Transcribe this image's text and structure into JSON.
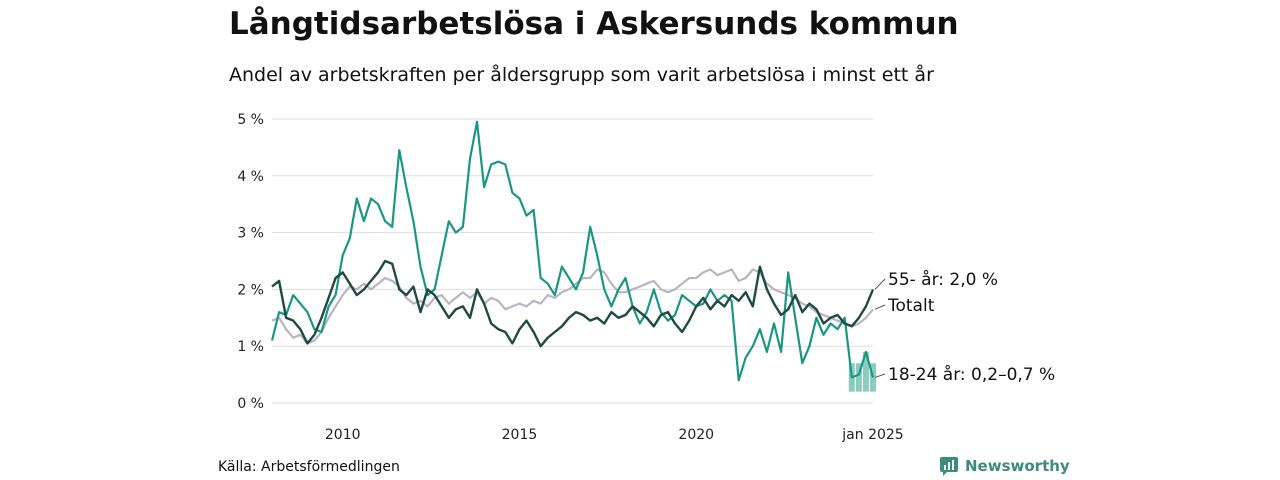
{
  "header": {
    "title": "Långtidsarbetslösa i Askersunds kommun",
    "subtitle": "Andel av arbetskraften per åldersgrupp som varit arbetslösa i minst ett år"
  },
  "footer": {
    "source": "Källa: Arbetsförmedlingen",
    "brand": "Newsworthy"
  },
  "colors": {
    "youth": "#1a9783",
    "senior": "#1f4a3f",
    "total": "#b9b4c2",
    "youth_band": "#8ccbbf",
    "grid": "#dddddd",
    "brand": "#3c8b7c"
  },
  "chart_data": {
    "type": "line",
    "x_unit": "year",
    "xlim": [
      2008.0,
      2025.0
    ],
    "ylim": [
      0,
      5
    ],
    "y_ticks": [
      {
        "value": 0,
        "label": "0 %"
      },
      {
        "value": 1,
        "label": "1 %"
      },
      {
        "value": 2,
        "label": "2 %"
      },
      {
        "value": 3,
        "label": "3 %"
      },
      {
        "value": 4,
        "label": "4 %"
      },
      {
        "value": 5,
        "label": "5 %"
      }
    ],
    "x_ticks": [
      {
        "value": 2010,
        "label": "2010"
      },
      {
        "value": 2015,
        "label": "2015"
      },
      {
        "value": 2020,
        "label": "2020"
      },
      {
        "value": 2025,
        "label": "jan 2025"
      }
    ],
    "grid": true,
    "series": [
      {
        "key": "total",
        "end_label": "Totalt",
        "points": [
          [
            2008.0,
            1.45
          ],
          [
            2008.2,
            1.5
          ],
          [
            2008.4,
            1.3
          ],
          [
            2008.6,
            1.15
          ],
          [
            2008.8,
            1.2
          ],
          [
            2009.0,
            1.05
          ],
          [
            2009.2,
            1.1
          ],
          [
            2009.4,
            1.25
          ],
          [
            2009.6,
            1.5
          ],
          [
            2009.8,
            1.7
          ],
          [
            2010.0,
            1.9
          ],
          [
            2010.2,
            2.05
          ],
          [
            2010.4,
            2.0
          ],
          [
            2010.6,
            2.1
          ],
          [
            2010.8,
            2.0
          ],
          [
            2011.0,
            2.1
          ],
          [
            2011.2,
            2.2
          ],
          [
            2011.4,
            2.15
          ],
          [
            2011.6,
            2.05
          ],
          [
            2011.8,
            1.85
          ],
          [
            2012.0,
            1.75
          ],
          [
            2012.2,
            1.8
          ],
          [
            2012.4,
            1.7
          ],
          [
            2012.6,
            1.85
          ],
          [
            2012.8,
            1.9
          ],
          [
            2013.0,
            1.75
          ],
          [
            2013.2,
            1.85
          ],
          [
            2013.4,
            1.95
          ],
          [
            2013.6,
            1.85
          ],
          [
            2013.8,
            1.95
          ],
          [
            2014.0,
            1.75
          ],
          [
            2014.2,
            1.85
          ],
          [
            2014.4,
            1.8
          ],
          [
            2014.6,
            1.65
          ],
          [
            2014.8,
            1.7
          ],
          [
            2015.0,
            1.75
          ],
          [
            2015.2,
            1.7
          ],
          [
            2015.4,
            1.8
          ],
          [
            2015.6,
            1.75
          ],
          [
            2015.8,
            1.9
          ],
          [
            2016.0,
            1.85
          ],
          [
            2016.2,
            1.95
          ],
          [
            2016.4,
            2.0
          ],
          [
            2016.6,
            2.1
          ],
          [
            2016.8,
            2.2
          ],
          [
            2017.0,
            2.2
          ],
          [
            2017.2,
            2.35
          ],
          [
            2017.4,
            2.3
          ],
          [
            2017.6,
            2.1
          ],
          [
            2017.8,
            1.95
          ],
          [
            2018.0,
            1.95
          ],
          [
            2018.2,
            2.0
          ],
          [
            2018.4,
            2.05
          ],
          [
            2018.6,
            2.1
          ],
          [
            2018.8,
            2.15
          ],
          [
            2019.0,
            2.0
          ],
          [
            2019.2,
            1.95
          ],
          [
            2019.4,
            2.0
          ],
          [
            2019.6,
            2.1
          ],
          [
            2019.8,
            2.2
          ],
          [
            2020.0,
            2.2
          ],
          [
            2020.2,
            2.3
          ],
          [
            2020.4,
            2.35
          ],
          [
            2020.6,
            2.25
          ],
          [
            2020.8,
            2.3
          ],
          [
            2021.0,
            2.35
          ],
          [
            2021.2,
            2.15
          ],
          [
            2021.4,
            2.2
          ],
          [
            2021.6,
            2.35
          ],
          [
            2021.8,
            2.3
          ],
          [
            2022.0,
            2.1
          ],
          [
            2022.2,
            2.0
          ],
          [
            2022.4,
            1.95
          ],
          [
            2022.6,
            1.9
          ],
          [
            2022.8,
            1.85
          ],
          [
            2023.0,
            1.75
          ],
          [
            2023.2,
            1.7
          ],
          [
            2023.4,
            1.6
          ],
          [
            2023.6,
            1.55
          ],
          [
            2023.8,
            1.5
          ],
          [
            2024.0,
            1.45
          ],
          [
            2024.2,
            1.4
          ],
          [
            2024.4,
            1.35
          ],
          [
            2024.6,
            1.4
          ],
          [
            2024.8,
            1.5
          ],
          [
            2025.0,
            1.65
          ]
        ]
      },
      {
        "key": "youth",
        "end_label": "18-24 år: 0,2–0,7 %",
        "points": [
          [
            2008.0,
            1.1
          ],
          [
            2008.2,
            1.6
          ],
          [
            2008.4,
            1.55
          ],
          [
            2008.6,
            1.9
          ],
          [
            2008.8,
            1.75
          ],
          [
            2009.0,
            1.6
          ],
          [
            2009.2,
            1.3
          ],
          [
            2009.4,
            1.25
          ],
          [
            2009.6,
            1.7
          ],
          [
            2009.8,
            1.9
          ],
          [
            2010.0,
            2.6
          ],
          [
            2010.2,
            2.9
          ],
          [
            2010.4,
            3.6
          ],
          [
            2010.6,
            3.2
          ],
          [
            2010.8,
            3.6
          ],
          [
            2011.0,
            3.5
          ],
          [
            2011.2,
            3.2
          ],
          [
            2011.4,
            3.1
          ],
          [
            2011.6,
            4.45
          ],
          [
            2011.8,
            3.8
          ],
          [
            2012.0,
            3.2
          ],
          [
            2012.2,
            2.4
          ],
          [
            2012.4,
            1.9
          ],
          [
            2012.6,
            2.0
          ],
          [
            2012.8,
            2.6
          ],
          [
            2013.0,
            3.2
          ],
          [
            2013.2,
            3.0
          ],
          [
            2013.4,
            3.1
          ],
          [
            2013.6,
            4.3
          ],
          [
            2013.8,
            4.95
          ],
          [
            2014.0,
            3.8
          ],
          [
            2014.2,
            4.2
          ],
          [
            2014.4,
            4.25
          ],
          [
            2014.6,
            4.2
          ],
          [
            2014.8,
            3.7
          ],
          [
            2015.0,
            3.6
          ],
          [
            2015.2,
            3.3
          ],
          [
            2015.4,
            3.4
          ],
          [
            2015.6,
            2.2
          ],
          [
            2015.8,
            2.1
          ],
          [
            2016.0,
            1.9
          ],
          [
            2016.2,
            2.4
          ],
          [
            2016.4,
            2.2
          ],
          [
            2016.6,
            2.0
          ],
          [
            2016.8,
            2.3
          ],
          [
            2017.0,
            3.1
          ],
          [
            2017.2,
            2.6
          ],
          [
            2017.4,
            2.0
          ],
          [
            2017.6,
            1.7
          ],
          [
            2017.8,
            2.0
          ],
          [
            2018.0,
            2.2
          ],
          [
            2018.2,
            1.7
          ],
          [
            2018.4,
            1.4
          ],
          [
            2018.6,
            1.6
          ],
          [
            2018.8,
            2.0
          ],
          [
            2019.0,
            1.6
          ],
          [
            2019.2,
            1.45
          ],
          [
            2019.4,
            1.55
          ],
          [
            2019.6,
            1.9
          ],
          [
            2019.8,
            1.8
          ],
          [
            2020.0,
            1.7
          ],
          [
            2020.2,
            1.75
          ],
          [
            2020.4,
            2.0
          ],
          [
            2020.6,
            1.8
          ],
          [
            2020.8,
            1.9
          ],
          [
            2021.0,
            1.8
          ],
          [
            2021.2,
            0.4
          ],
          [
            2021.4,
            0.8
          ],
          [
            2021.6,
            1.0
          ],
          [
            2021.8,
            1.3
          ],
          [
            2022.0,
            0.9
          ],
          [
            2022.2,
            1.4
          ],
          [
            2022.4,
            0.9
          ],
          [
            2022.6,
            2.3
          ],
          [
            2022.8,
            1.5
          ],
          [
            2023.0,
            0.7
          ],
          [
            2023.2,
            1.0
          ],
          [
            2023.4,
            1.5
          ],
          [
            2023.6,
            1.2
          ],
          [
            2023.8,
            1.4
          ],
          [
            2024.0,
            1.3
          ],
          [
            2024.2,
            1.5
          ],
          [
            2024.4,
            0.45
          ],
          [
            2024.6,
            0.5
          ],
          [
            2024.8,
            0.9
          ],
          [
            2025.0,
            0.45
          ]
        ]
      },
      {
        "key": "senior",
        "end_label": "55- år: 2,0 %",
        "points": [
          [
            2008.0,
            2.05
          ],
          [
            2008.2,
            2.15
          ],
          [
            2008.4,
            1.5
          ],
          [
            2008.6,
            1.45
          ],
          [
            2008.8,
            1.3
          ],
          [
            2009.0,
            1.05
          ],
          [
            2009.2,
            1.2
          ],
          [
            2009.4,
            1.5
          ],
          [
            2009.6,
            1.85
          ],
          [
            2009.8,
            2.2
          ],
          [
            2010.0,
            2.3
          ],
          [
            2010.2,
            2.1
          ],
          [
            2010.4,
            1.9
          ],
          [
            2010.6,
            2.0
          ],
          [
            2010.8,
            2.15
          ],
          [
            2011.0,
            2.3
          ],
          [
            2011.2,
            2.5
          ],
          [
            2011.4,
            2.45
          ],
          [
            2011.6,
            2.0
          ],
          [
            2011.8,
            1.9
          ],
          [
            2012.0,
            2.05
          ],
          [
            2012.2,
            1.6
          ],
          [
            2012.4,
            2.0
          ],
          [
            2012.6,
            1.9
          ],
          [
            2012.8,
            1.7
          ],
          [
            2013.0,
            1.5
          ],
          [
            2013.2,
            1.65
          ],
          [
            2013.4,
            1.7
          ],
          [
            2013.6,
            1.5
          ],
          [
            2013.8,
            2.0
          ],
          [
            2014.0,
            1.75
          ],
          [
            2014.2,
            1.4
          ],
          [
            2014.4,
            1.3
          ],
          [
            2014.6,
            1.25
          ],
          [
            2014.8,
            1.05
          ],
          [
            2015.0,
            1.3
          ],
          [
            2015.2,
            1.45
          ],
          [
            2015.4,
            1.25
          ],
          [
            2015.6,
            1.0
          ],
          [
            2015.8,
            1.15
          ],
          [
            2016.0,
            1.25
          ],
          [
            2016.2,
            1.35
          ],
          [
            2016.4,
            1.5
          ],
          [
            2016.6,
            1.6
          ],
          [
            2016.8,
            1.55
          ],
          [
            2017.0,
            1.45
          ],
          [
            2017.2,
            1.5
          ],
          [
            2017.4,
            1.4
          ],
          [
            2017.6,
            1.6
          ],
          [
            2017.8,
            1.5
          ],
          [
            2018.0,
            1.55
          ],
          [
            2018.2,
            1.7
          ],
          [
            2018.4,
            1.6
          ],
          [
            2018.6,
            1.5
          ],
          [
            2018.8,
            1.35
          ],
          [
            2019.0,
            1.55
          ],
          [
            2019.2,
            1.6
          ],
          [
            2019.4,
            1.4
          ],
          [
            2019.6,
            1.25
          ],
          [
            2019.8,
            1.45
          ],
          [
            2020.0,
            1.7
          ],
          [
            2020.2,
            1.85
          ],
          [
            2020.4,
            1.65
          ],
          [
            2020.6,
            1.8
          ],
          [
            2020.8,
            1.7
          ],
          [
            2021.0,
            1.9
          ],
          [
            2021.2,
            1.8
          ],
          [
            2021.4,
            1.95
          ],
          [
            2021.6,
            1.7
          ],
          [
            2021.8,
            2.4
          ],
          [
            2022.0,
            2.0
          ],
          [
            2022.2,
            1.75
          ],
          [
            2022.4,
            1.55
          ],
          [
            2022.6,
            1.65
          ],
          [
            2022.8,
            1.9
          ],
          [
            2023.0,
            1.6
          ],
          [
            2023.2,
            1.75
          ],
          [
            2023.4,
            1.65
          ],
          [
            2023.6,
            1.4
          ],
          [
            2023.8,
            1.5
          ],
          [
            2024.0,
            1.55
          ],
          [
            2024.2,
            1.4
          ],
          [
            2024.4,
            1.35
          ],
          [
            2024.6,
            1.5
          ],
          [
            2024.8,
            1.7
          ],
          [
            2025.0,
            2.0
          ]
        ]
      }
    ],
    "youth_range": {
      "points": [
        [
          2024.4,
          0.2,
          0.7
        ],
        [
          2024.6,
          0.2,
          0.7
        ],
        [
          2024.8,
          0.2,
          0.9
        ],
        [
          2025.0,
          0.2,
          0.7
        ]
      ]
    }
  }
}
